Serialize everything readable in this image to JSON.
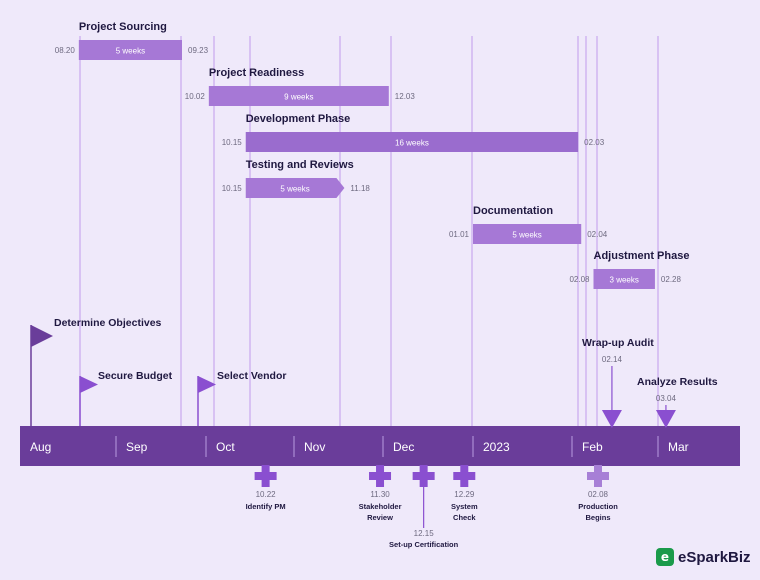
{
  "chart_data": {
    "type": "gantt",
    "months": [
      "Aug",
      "Sep",
      "Oct",
      "Nov",
      "Dec",
      "2023",
      "Feb",
      "Mar"
    ],
    "tasks": [
      {
        "name": "Project Sourcing",
        "start": "08.20",
        "end": "09.23",
        "duration": "5 weeks"
      },
      {
        "name": "Project Readiness",
        "start": "10.02",
        "end": "12.03",
        "duration": "9 weeks"
      },
      {
        "name": "Development Phase",
        "start": "10.15",
        "end": "02.03",
        "duration": "16 weeks"
      },
      {
        "name": "Testing and Reviews",
        "start": "10.15",
        "end": "11.18",
        "duration": "5 weeks"
      },
      {
        "name": "Documentation",
        "start": "01.01",
        "end": "02.04",
        "duration": "5 weeks"
      },
      {
        "name": "Adjustment Phase",
        "start": "02.08",
        "end": "02.28",
        "duration": "3 weeks"
      }
    ],
    "flag_milestones": [
      {
        "name": "Determine Objectives"
      },
      {
        "name": "Secure Budget"
      },
      {
        "name": "Select Vendor"
      }
    ],
    "top_milestones": [
      {
        "name": "Wrap-up Audit",
        "date": "02.14"
      },
      {
        "name": "Analyze Results",
        "date": "03.04"
      }
    ],
    "bottom_milestones": [
      {
        "name": "Identify PM",
        "date": "10.22"
      },
      {
        "name": "Stakeholder Review",
        "date": "11.30"
      },
      {
        "name": "Set-up Certification",
        "date": "12.15"
      },
      {
        "name": "System Check",
        "date": "12.29"
      },
      {
        "name": "Production Begins",
        "date": "02.08"
      }
    ],
    "colors": {
      "background": "#efe9fa",
      "axis": "#6a3d9a",
      "bar": "#a678d6",
      "bar_dark": "#9a6cce",
      "milestone": "#8a4fd0",
      "flag_dark": "#6a3d9a",
      "gridline": "#c9a8ee"
    }
  },
  "logo": {
    "mark": "e",
    "text": "eSparkBiz"
  }
}
